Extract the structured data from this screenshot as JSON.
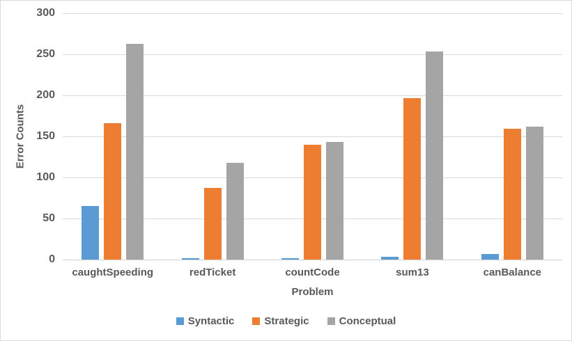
{
  "chart_data": {
    "type": "bar",
    "title": "",
    "xlabel": "Problem",
    "ylabel": "Error Counts",
    "ylim": [
      0,
      300
    ],
    "yticks": [
      0,
      50,
      100,
      150,
      200,
      250,
      300
    ],
    "grid": true,
    "legend_position": "bottom",
    "categories": [
      "caughtSpeeding",
      "redTicket",
      "countCode",
      "sum13",
      "canBalance"
    ],
    "series": [
      {
        "name": "Syntactic",
        "color": "#5B9BD5",
        "values": [
          65,
          2,
          2,
          3,
          7
        ]
      },
      {
        "name": "Strategic",
        "color": "#ED7D31",
        "values": [
          166,
          87,
          140,
          197,
          159
        ]
      },
      {
        "name": "Conceptual",
        "color": "#A5A5A5",
        "values": [
          263,
          118,
          143,
          253,
          162
        ]
      }
    ]
  },
  "colors": {
    "text": "#595959",
    "gridline": "#D9D9D9",
    "axis_line": "#D3D3D3",
    "background": "#FFFFFF",
    "frame_border": "#D9D9D9"
  }
}
